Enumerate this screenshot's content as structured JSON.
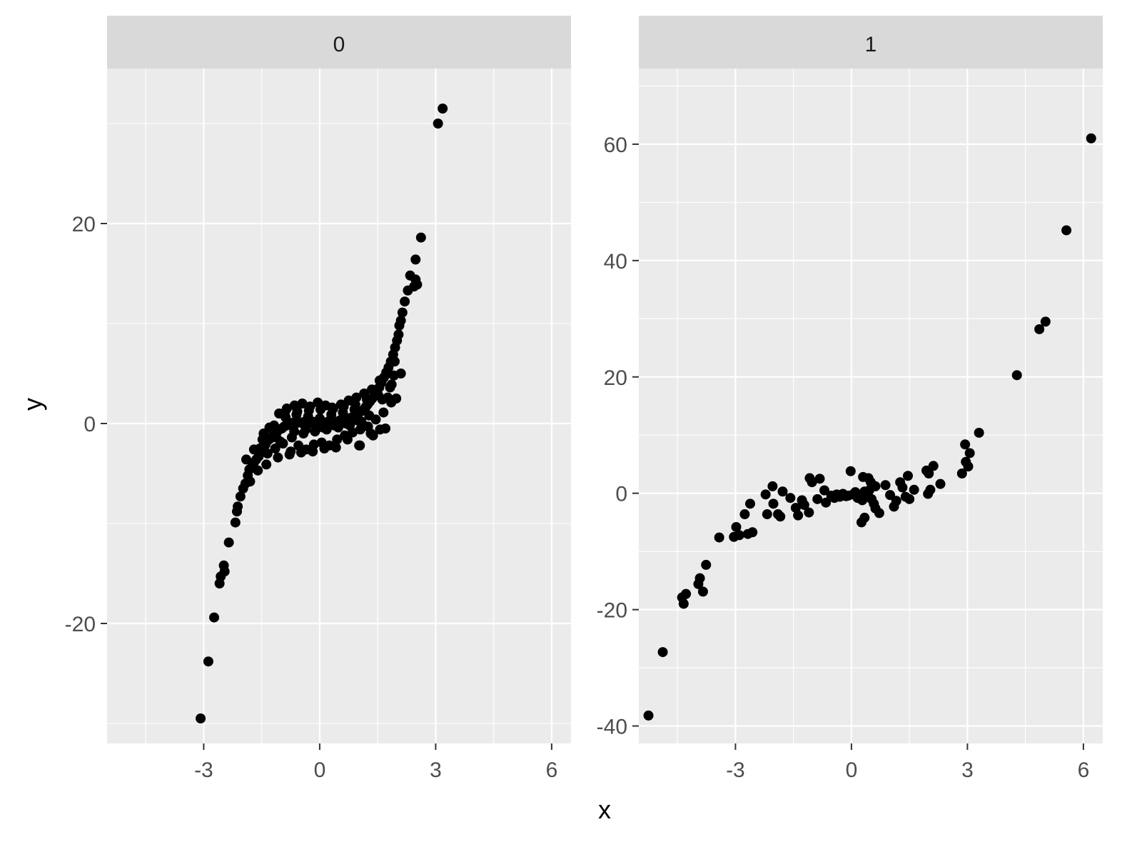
{
  "chart_data": {
    "type": "scatter",
    "facet_variable": "",
    "xlabel": "x",
    "ylabel": "y",
    "grid": true,
    "shared_x_axis": true,
    "free_y_axis": true,
    "xlim": [
      -5.5,
      6.5
    ],
    "x_ticks": [
      -3,
      0,
      3,
      6
    ],
    "x_tick_labels": [
      "-3",
      "0",
      "3",
      "6"
    ],
    "point_color": "#000000",
    "panel_background": "#ebebeb",
    "grid_color": "#ffffff",
    "strip_background": "#d9d9d9",
    "panels": [
      {
        "strip_label": "0",
        "ylim": [
          -32,
          35.5
        ],
        "y_ticks": [
          -20,
          0,
          20
        ],
        "y_tick_labels": [
          "-20",
          "0",
          "20"
        ],
        "points": [
          [
            -3.08,
            -29.5
          ],
          [
            -2.88,
            -23.8
          ],
          [
            -2.73,
            -19.4
          ],
          [
            -2.56,
            -15.3
          ],
          [
            -2.59,
            -16.0
          ],
          [
            -2.48,
            -14.2
          ],
          [
            -2.46,
            -14.8
          ],
          [
            -2.35,
            -11.9
          ],
          [
            -2.18,
            -9.9
          ],
          [
            -2.14,
            -8.8
          ],
          [
            -2.12,
            -8.3
          ],
          [
            -2.05,
            -7.3
          ],
          [
            -1.98,
            -6.5
          ],
          [
            -1.92,
            -6.0
          ],
          [
            -1.86,
            -5.2
          ],
          [
            -1.82,
            -4.6
          ],
          [
            -1.76,
            -4.4
          ],
          [
            -1.7,
            -3.9
          ],
          [
            -1.64,
            -3.6
          ],
          [
            -1.58,
            -3.3
          ],
          [
            -1.52,
            -2.7
          ],
          [
            -1.46,
            -2.6
          ],
          [
            -1.4,
            -2.1
          ],
          [
            -1.34,
            -1.7
          ],
          [
            -1.28,
            -1.5
          ],
          [
            -1.22,
            -1.3
          ],
          [
            -1.16,
            -1.0
          ],
          [
            -1.1,
            -0.8
          ],
          [
            -1.04,
            -0.6
          ],
          [
            -0.98,
            -0.5
          ],
          [
            -0.92,
            -0.3
          ],
          [
            -0.86,
            -0.2
          ],
          [
            -0.8,
            -0.1
          ],
          [
            -0.74,
            0.0
          ],
          [
            -0.68,
            0.1
          ],
          [
            -0.62,
            0.0
          ],
          [
            -0.56,
            0.2
          ],
          [
            -0.5,
            0.1
          ],
          [
            -0.44,
            0.0
          ],
          [
            -0.38,
            0.2
          ],
          [
            -0.32,
            0.1
          ],
          [
            -0.26,
            0.0
          ],
          [
            -0.2,
            0.2
          ],
          [
            -0.14,
            0.1
          ],
          [
            -0.08,
            0.0
          ],
          [
            -0.02,
            0.1
          ],
          [
            0.04,
            0.2
          ],
          [
            0.1,
            0.0
          ],
          [
            0.16,
            0.1
          ],
          [
            0.22,
            0.2
          ],
          [
            0.28,
            0.0
          ],
          [
            0.34,
            0.1
          ],
          [
            0.4,
            0.2
          ],
          [
            0.46,
            0.1
          ],
          [
            0.52,
            0.3
          ],
          [
            0.58,
            0.2
          ],
          [
            0.64,
            0.3
          ],
          [
            0.7,
            0.4
          ],
          [
            0.76,
            0.5
          ],
          [
            0.82,
            0.6
          ],
          [
            0.88,
            0.7
          ],
          [
            0.94,
            0.8
          ],
          [
            1.0,
            1.0
          ],
          [
            1.06,
            1.2
          ],
          [
            1.12,
            1.3
          ],
          [
            1.18,
            1.6
          ],
          [
            1.24,
            1.9
          ],
          [
            1.3,
            2.2
          ],
          [
            1.36,
            2.5
          ],
          [
            1.42,
            2.9
          ],
          [
            1.48,
            3.2
          ],
          [
            1.54,
            3.6
          ],
          [
            1.6,
            4.1
          ],
          [
            1.66,
            4.6
          ],
          [
            1.72,
            5.1
          ],
          [
            1.78,
            5.6
          ],
          [
            1.84,
            6.2
          ],
          [
            1.9,
            6.9
          ],
          [
            -1.55,
            -2.5
          ],
          [
            -1.45,
            -1.0
          ],
          [
            -1.35,
            -3.0
          ],
          [
            -1.25,
            -0.5
          ],
          [
            -1.15,
            -2.5
          ],
          [
            -1.05,
            1.0
          ],
          [
            -0.95,
            -2.0
          ],
          [
            -0.85,
            1.5
          ],
          [
            -0.75,
            -2.8
          ],
          [
            -0.65,
            1.8
          ],
          [
            -0.55,
            -2.2
          ],
          [
            -0.45,
            2.0
          ],
          [
            -0.35,
            -2.6
          ],
          [
            -0.25,
            1.7
          ],
          [
            -0.15,
            -2.1
          ],
          [
            -0.05,
            2.1
          ],
          [
            0.05,
            -1.9
          ],
          [
            0.15,
            1.8
          ],
          [
            0.25,
            -2.2
          ],
          [
            0.35,
            1.5
          ],
          [
            0.45,
            -1.6
          ],
          [
            0.55,
            1.9
          ],
          [
            0.65,
            -1.2
          ],
          [
            0.75,
            2.3
          ],
          [
            0.85,
            -0.9
          ],
          [
            0.95,
            2.6
          ],
          [
            1.05,
            -0.6
          ],
          [
            1.15,
            3.0
          ],
          [
            1.25,
            -0.3
          ],
          [
            1.35,
            3.4
          ],
          [
            1.45,
            0.4
          ],
          [
            1.55,
            4.3
          ],
          [
            1.65,
            1.1
          ],
          [
            1.75,
            5.0
          ],
          [
            1.85,
            2.1
          ],
          [
            -1.9,
            -3.6
          ],
          [
            -1.8,
            -5.8
          ],
          [
            -1.7,
            -2.6
          ],
          [
            -1.6,
            -4.7
          ],
          [
            -1.48,
            -1.6
          ],
          [
            -1.38,
            -4.1
          ],
          [
            -1.18,
            -0.2
          ],
          [
            -1.08,
            -3.4
          ],
          [
            -0.88,
            0.6
          ],
          [
            -0.78,
            -3.1
          ],
          [
            -0.58,
            1.2
          ],
          [
            -0.48,
            -2.9
          ],
          [
            -0.28,
            1.3
          ],
          [
            -0.18,
            -2.8
          ],
          [
            0.02,
            1.4
          ],
          [
            0.12,
            -2.5
          ],
          [
            0.32,
            1.6
          ],
          [
            0.42,
            -2.4
          ],
          [
            0.62,
            1.7
          ],
          [
            0.72,
            -1.6
          ],
          [
            0.92,
            1.9
          ],
          [
            1.02,
            -2.2
          ],
          [
            1.22,
            2.4
          ],
          [
            1.32,
            -1.0
          ],
          [
            1.52,
            2.8
          ],
          [
            1.62,
            2.4
          ],
          [
            1.7,
            -0.5
          ],
          [
            1.82,
            3.6
          ],
          [
            1.94,
            6.2
          ],
          [
            1.92,
            4.8
          ],
          [
            -1.02,
            -1.8
          ],
          [
            -0.72,
            -1.4
          ],
          [
            -0.42,
            -1.0
          ],
          [
            -0.12,
            -0.8
          ],
          [
            0.18,
            -0.6
          ],
          [
            0.48,
            -0.4
          ],
          [
            0.78,
            -0.2
          ],
          [
            1.08,
            0.2
          ],
          [
            -0.9,
            1.1
          ],
          [
            -0.6,
            0.9
          ],
          [
            -0.3,
            0.7
          ],
          [
            0.0,
            0.5
          ],
          [
            0.3,
            0.9
          ],
          [
            0.6,
            1.1
          ],
          [
            0.9,
            1.4
          ],
          [
            1.2,
            1.7
          ],
          [
            -1.3,
            -0.4
          ],
          [
            -1.12,
            -1.4
          ],
          [
            -0.66,
            -0.8
          ],
          [
            -0.36,
            -0.6
          ],
          [
            0.08,
            -0.4
          ],
          [
            0.38,
            -0.2
          ],
          [
            0.68,
            0.0
          ],
          [
            0.98,
            0.3
          ],
          [
            1.28,
            0.8
          ],
          [
            1.95,
            7.6
          ],
          [
            2.0,
            8.3
          ],
          [
            2.04,
            8.9
          ],
          [
            2.06,
            9.8
          ],
          [
            2.1,
            10.3
          ],
          [
            2.14,
            11.1
          ],
          [
            2.2,
            12.2
          ],
          [
            2.28,
            13.3
          ],
          [
            2.34,
            14.8
          ],
          [
            2.44,
            13.7
          ],
          [
            2.48,
            14.4
          ],
          [
            2.52,
            13.9
          ],
          [
            2.48,
            16.4
          ],
          [
            2.62,
            18.6
          ],
          [
            2.1,
            5.0
          ],
          [
            1.98,
            2.5
          ],
          [
            1.86,
            3.9
          ],
          [
            1.76,
            2.6
          ],
          [
            1.56,
            -0.6
          ],
          [
            1.38,
            -1.2
          ],
          [
            1.04,
            -2.2
          ],
          [
            3.06,
            30.0
          ],
          [
            3.18,
            31.5
          ]
        ]
      },
      {
        "strip_label": "1",
        "ylim": [
          -43,
          73
        ],
        "y_ticks": [
          -40,
          -20,
          0,
          20,
          40,
          60
        ],
        "y_tick_labels": [
          "-40",
          "-20",
          "0",
          "20",
          "40",
          "60"
        ],
        "points": [
          [
            -5.25,
            -38.2
          ],
          [
            -4.88,
            -27.3
          ],
          [
            -4.38,
            -17.9
          ],
          [
            -4.28,
            -17.3
          ],
          [
            -4.34,
            -19.0
          ],
          [
            -3.96,
            -15.6
          ],
          [
            -3.92,
            -14.6
          ],
          [
            -3.84,
            -16.9
          ],
          [
            -3.76,
            -12.3
          ],
          [
            -3.42,
            -7.6
          ],
          [
            -3.04,
            -7.5
          ],
          [
            -2.98,
            -5.8
          ],
          [
            -2.9,
            -7.2
          ],
          [
            -2.76,
            -3.6
          ],
          [
            -2.68,
            -7.0
          ],
          [
            -2.56,
            -6.7
          ],
          [
            -2.62,
            -1.8
          ],
          [
            -2.22,
            -0.2
          ],
          [
            -2.18,
            -3.6
          ],
          [
            -2.04,
            1.2
          ],
          [
            -2.02,
            -1.8
          ],
          [
            -1.9,
            -3.6
          ],
          [
            -1.84,
            -4.0
          ],
          [
            -1.78,
            0.3
          ],
          [
            -1.58,
            -0.8
          ],
          [
            -1.44,
            -2.5
          ],
          [
            -1.38,
            -3.8
          ],
          [
            -1.28,
            -1.2
          ],
          [
            -1.22,
            -2.0
          ],
          [
            -1.1,
            -3.3
          ],
          [
            -1.08,
            2.6
          ],
          [
            -1.02,
            1.9
          ],
          [
            -0.82,
            2.5
          ],
          [
            -0.88,
            -1.0
          ],
          [
            -0.7,
            0.5
          ],
          [
            -0.66,
            -1.6
          ],
          [
            -0.52,
            -0.4
          ],
          [
            -0.44,
            -0.8
          ],
          [
            -0.38,
            -0.2
          ],
          [
            -0.3,
            -0.6
          ],
          [
            -0.22,
            -0.1
          ],
          [
            -0.14,
            -0.5
          ],
          [
            -0.08,
            -0.4
          ],
          [
            -0.02,
            3.8
          ],
          [
            0.04,
            -0.2
          ],
          [
            0.1,
            0.2
          ],
          [
            0.16,
            -0.8
          ],
          [
            0.22,
            -0.4
          ],
          [
            0.28,
            -1.2
          ],
          [
            0.34,
            0.3
          ],
          [
            0.4,
            -0.6
          ],
          [
            0.46,
            0.5
          ],
          [
            0.52,
            -1.0
          ],
          [
            0.58,
            -1.8
          ],
          [
            0.3,
            2.8
          ],
          [
            0.44,
            2.6
          ],
          [
            0.5,
            1.9
          ],
          [
            0.62,
            1.2
          ],
          [
            0.26,
            -5.0
          ],
          [
            0.34,
            -4.2
          ],
          [
            0.62,
            -2.6
          ],
          [
            0.72,
            -3.4
          ],
          [
            0.88,
            1.4
          ],
          [
            1.0,
            -0.3
          ],
          [
            1.1,
            -2.3
          ],
          [
            1.16,
            -1.3
          ],
          [
            1.26,
            1.9
          ],
          [
            1.32,
            1.0
          ],
          [
            1.4,
            -0.6
          ],
          [
            1.46,
            3.0
          ],
          [
            1.5,
            -1.0
          ],
          [
            1.62,
            0.6
          ],
          [
            1.94,
            3.9
          ],
          [
            2.0,
            3.4
          ],
          [
            1.98,
            -0.1
          ],
          [
            2.04,
            0.6
          ],
          [
            2.12,
            4.7
          ],
          [
            2.3,
            1.6
          ],
          [
            2.86,
            3.4
          ],
          [
            2.94,
            8.4
          ],
          [
            3.02,
            4.6
          ],
          [
            3.06,
            6.9
          ],
          [
            2.96,
            5.4
          ],
          [
            3.3,
            10.4
          ],
          [
            4.28,
            20.3
          ],
          [
            4.86,
            28.2
          ],
          [
            5.02,
            29.5
          ],
          [
            5.56,
            45.2
          ],
          [
            6.2,
            61.0
          ]
        ]
      }
    ]
  }
}
